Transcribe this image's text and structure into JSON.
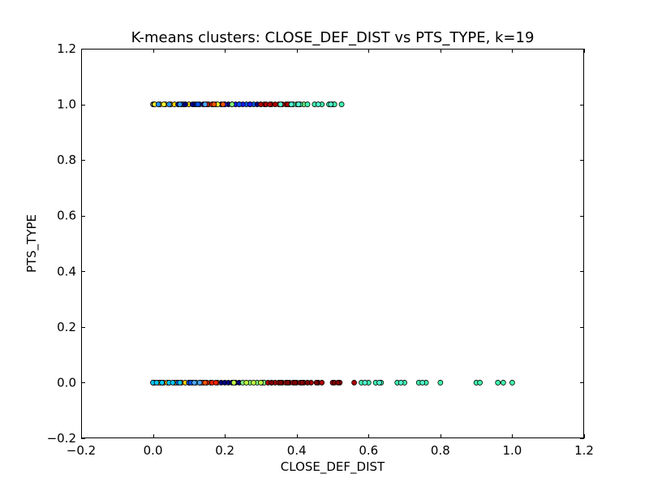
{
  "chart_data": {
    "type": "scatter",
    "title": "K-means clusters: CLOSE_DEF_DIST vs PTS_TYPE, k=19",
    "xlabel": "CLOSE_DEF_DIST",
    "ylabel": "PTS_TYPE",
    "xlim": [
      -0.2,
      1.2
    ],
    "ylim": [
      -0.2,
      1.2
    ],
    "xticks": [
      "−0.2",
      "0.0",
      "0.2",
      "0.4",
      "0.6",
      "0.8",
      "1.0",
      "1.2"
    ],
    "yticks": [
      "−0.2",
      "0.0",
      "0.2",
      "0.4",
      "0.6",
      "0.8",
      "1.0",
      "1.2"
    ],
    "xtick_values": [
      -0.2,
      0.0,
      0.2,
      0.4,
      0.6,
      0.8,
      1.0,
      1.2
    ],
    "ytick_values": [
      -0.2,
      0.0,
      0.2,
      0.4,
      0.6,
      0.8,
      1.0,
      1.2
    ],
    "grid": false,
    "legend": "none",
    "marker_edge_color": "#000000",
    "series": [
      {
        "color": "#e8e8ff",
        "points": [
          [
            0.0,
            0
          ],
          [
            0.002,
            0
          ],
          [
            0.004,
            0
          ],
          [
            0.0,
            1
          ],
          [
            0.003,
            1
          ]
        ]
      },
      {
        "color": "#ff8000",
        "points": [
          [
            0.02,
            0
          ],
          [
            0.03,
            0
          ],
          [
            0.045,
            0
          ],
          [
            0.06,
            0
          ],
          [
            0.08,
            0
          ],
          [
            0.1,
            0
          ],
          [
            0.13,
            0
          ],
          [
            0.16,
            0
          ],
          [
            0.18,
            0
          ],
          [
            0.05,
            1
          ],
          [
            0.09,
            1
          ],
          [
            0.12,
            1
          ],
          [
            0.155,
            1
          ],
          [
            0.2,
            1
          ]
        ]
      },
      {
        "color": "#ffd700",
        "points": [
          [
            0.015,
            0
          ],
          [
            0.04,
            0
          ],
          [
            0.065,
            0
          ],
          [
            0.09,
            0
          ],
          [
            0.02,
            1
          ],
          [
            0.035,
            1
          ],
          [
            0.06,
            1
          ],
          [
            0.08,
            1
          ],
          [
            0.1,
            1
          ]
        ]
      },
      {
        "color": "#0066ff",
        "points": [
          [
            0.025,
            0
          ],
          [
            0.07,
            0
          ],
          [
            0.11,
            0
          ],
          [
            0.14,
            0
          ],
          [
            0.085,
            1
          ],
          [
            0.115,
            1
          ],
          [
            0.13,
            1
          ],
          [
            0.26,
            1
          ],
          [
            0.28,
            1
          ]
        ]
      },
      {
        "color": "#000080",
        "points": [
          [
            0.19,
            0
          ],
          [
            0.2,
            0
          ],
          [
            0.21,
            0
          ],
          [
            0.22,
            0
          ],
          [
            0.23,
            0
          ],
          [
            0.24,
            0
          ],
          [
            0.07,
            1
          ],
          [
            0.09,
            1
          ],
          [
            0.11,
            1
          ],
          [
            0.14,
            1
          ],
          [
            0.165,
            1
          ],
          [
            0.19,
            1
          ],
          [
            0.21,
            1
          ],
          [
            0.24,
            1
          ],
          [
            0.27,
            1
          ],
          [
            0.29,
            1
          ],
          [
            0.3,
            1
          ]
        ]
      },
      {
        "color": "#1a1aff",
        "points": [
          [
            0.2,
            1
          ],
          [
            0.23,
            1
          ],
          [
            0.25,
            1
          ],
          [
            0.27,
            1
          ]
        ]
      },
      {
        "color": "#ff2000",
        "points": [
          [
            0.15,
            0
          ],
          [
            0.165,
            0
          ],
          [
            0.175,
            0
          ],
          [
            0.15,
            1
          ],
          [
            0.165,
            1
          ],
          [
            0.175,
            1
          ],
          [
            0.31,
            1
          ],
          [
            0.33,
            1
          ],
          [
            0.35,
            1
          ],
          [
            0.37,
            1
          ]
        ]
      },
      {
        "color": "#00c8ff",
        "points": [
          [
            0.0,
            0
          ],
          [
            0.01,
            0
          ],
          [
            0.025,
            0
          ],
          [
            0.045,
            0
          ],
          [
            0.055,
            0
          ],
          [
            0.075,
            0
          ],
          [
            0.12,
            0
          ]
        ]
      },
      {
        "color": "#ffff30",
        "points": [
          [
            0.005,
            1
          ],
          [
            0.03,
            1
          ],
          [
            0.18,
            1
          ],
          [
            0.22,
            1
          ]
        ]
      },
      {
        "color": "#80ff80",
        "points": [
          [
            0.25,
            0
          ],
          [
            0.27,
            0
          ],
          [
            0.29,
            0
          ],
          [
            0.305,
            0
          ],
          [
            0.31,
            0
          ],
          [
            0.22,
            1
          ],
          [
            0.38,
            1
          ],
          [
            0.4,
            1
          ],
          [
            0.42,
            1
          ]
        ]
      },
      {
        "color": "#c0ff40",
        "points": [
          [
            0.225,
            0
          ],
          [
            0.26,
            0
          ],
          [
            0.28,
            0
          ],
          [
            0.3,
            0
          ]
        ]
      },
      {
        "color": "#b00000",
        "points": [
          [
            0.32,
            0
          ],
          [
            0.33,
            0
          ],
          [
            0.34,
            0
          ],
          [
            0.35,
            0
          ],
          [
            0.36,
            0
          ],
          [
            0.37,
            0
          ],
          [
            0.38,
            0
          ],
          [
            0.39,
            0
          ],
          [
            0.4,
            0
          ],
          [
            0.41,
            0
          ],
          [
            0.42,
            0
          ],
          [
            0.44,
            0
          ],
          [
            0.46,
            0
          ],
          [
            0.47,
            0
          ],
          [
            0.5,
            0
          ],
          [
            0.52,
            0
          ],
          [
            0.56,
            0
          ],
          [
            0.3,
            1
          ],
          [
            0.315,
            1
          ],
          [
            0.325,
            1
          ],
          [
            0.34,
            1
          ],
          [
            0.36,
            1
          ],
          [
            0.375,
            1
          ]
        ]
      },
      {
        "color": "#800000",
        "points": [
          [
            0.33,
            0
          ],
          [
            0.355,
            0
          ],
          [
            0.375,
            0
          ],
          [
            0.395,
            0
          ],
          [
            0.415,
            0
          ],
          [
            0.43,
            0
          ],
          [
            0.455,
            0
          ],
          [
            0.505,
            0
          ],
          [
            0.515,
            0
          ]
        ]
      },
      {
        "color": "#40ffb0",
        "points": [
          [
            0.58,
            0
          ],
          [
            0.6,
            0
          ],
          [
            0.62,
            0
          ],
          [
            0.635,
            0
          ],
          [
            0.68,
            0
          ],
          [
            0.7,
            0
          ],
          [
            0.74,
            0
          ],
          [
            0.76,
            0
          ],
          [
            0.8,
            0
          ],
          [
            0.9,
            0
          ],
          [
            0.91,
            0
          ],
          [
            0.96,
            0
          ],
          [
            0.975,
            0
          ],
          [
            1.0,
            0
          ],
          [
            0.39,
            1
          ],
          [
            0.41,
            1
          ],
          [
            0.43,
            1
          ],
          [
            0.45,
            1
          ],
          [
            0.47,
            1
          ],
          [
            0.49,
            1
          ],
          [
            0.5,
            1
          ],
          [
            0.505,
            1
          ],
          [
            0.525,
            1
          ]
        ]
      },
      {
        "color": "#50ffd0",
        "points": [
          [
            0.59,
            0
          ],
          [
            0.63,
            0
          ],
          [
            0.69,
            0
          ],
          [
            0.75,
            0
          ],
          [
            0.355,
            1
          ],
          [
            0.385,
            1
          ],
          [
            0.405,
            1
          ],
          [
            0.46,
            1
          ],
          [
            0.495,
            1
          ]
        ]
      },
      {
        "color": "#ff5500",
        "points": [
          [
            0.135,
            0
          ],
          [
            0.145,
            0
          ],
          [
            0.17,
            1
          ],
          [
            0.195,
            1
          ]
        ]
      },
      {
        "color": "#0050ff",
        "points": [
          [
            0.1,
            0
          ],
          [
            0.105,
            0
          ],
          [
            0.125,
            1
          ],
          [
            0.24,
            1
          ]
        ]
      },
      {
        "color": "#4da6ff",
        "points": [
          [
            0.115,
            0
          ],
          [
            0.13,
            0
          ],
          [
            0.145,
            1
          ]
        ]
      },
      {
        "color": "#1e90ff",
        "points": [
          [
            0.015,
            1
          ],
          [
            0.045,
            1
          ],
          [
            0.075,
            1
          ]
        ]
      }
    ]
  }
}
